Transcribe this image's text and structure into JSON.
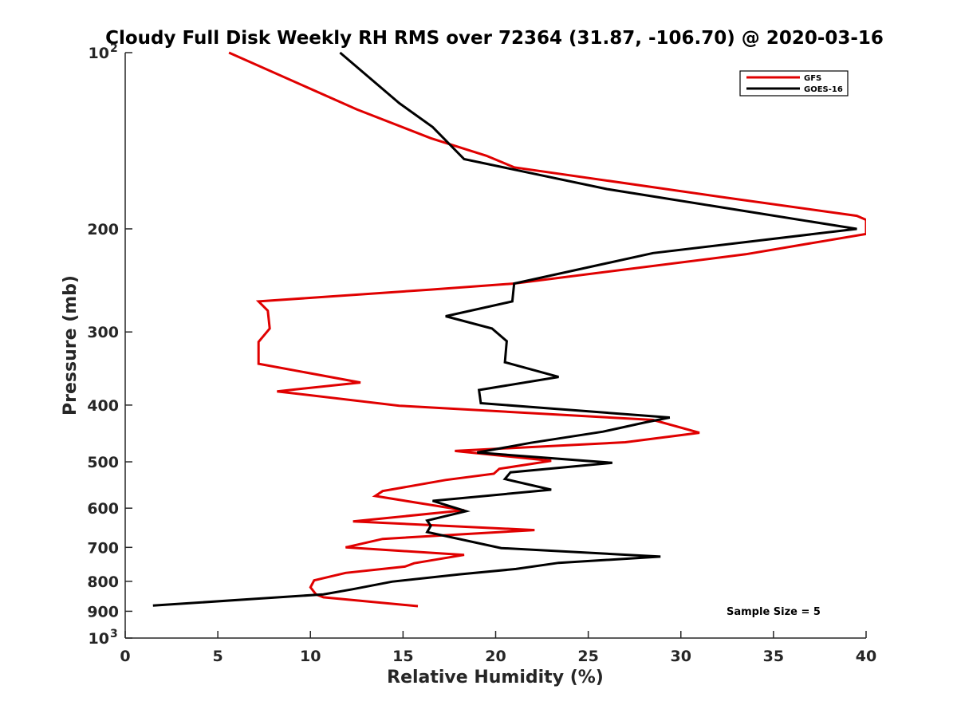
{
  "chart_data": {
    "type": "line",
    "title": "Cloudy Full Disk Weekly RH RMS over 72364 (31.87, -106.70) @ 2020-03-16",
    "xlabel": "Relative Humidity (%)",
    "ylabel": "Pressure (mb)",
    "xlim": [
      0,
      40
    ],
    "ylim": [
      100,
      1000
    ],
    "y_scale": "log",
    "y_reversed": true,
    "grid": false,
    "legend_placement": "top-right",
    "x_ticks": [
      "0",
      "5",
      "10",
      "15",
      "20",
      "25",
      "30",
      "35",
      "40"
    ],
    "x_tick_values": [
      0,
      5,
      10,
      15,
      20,
      25,
      30,
      35,
      40
    ],
    "y_ticks": [
      {
        "value": 100,
        "label": "10",
        "sup": "2"
      },
      {
        "value": 200,
        "label": "200",
        "sup": ""
      },
      {
        "value": 300,
        "label": "300",
        "sup": ""
      },
      {
        "value": 400,
        "label": "400",
        "sup": ""
      },
      {
        "value": 500,
        "label": "500",
        "sup": ""
      },
      {
        "value": 600,
        "label": "600",
        "sup": ""
      },
      {
        "value": 700,
        "label": "700",
        "sup": ""
      },
      {
        "value": 800,
        "label": "800",
        "sup": ""
      },
      {
        "value": 900,
        "label": "900",
        "sup": ""
      },
      {
        "value": 1000,
        "label": "10",
        "sup": "3"
      }
    ],
    "annotation": "Sample Size = 5",
    "series": [
      {
        "name": "GFS",
        "color": "#e00000",
        "points": [
          [
            5.6,
            100
          ],
          [
            12.5,
            125
          ],
          [
            16.5,
            140
          ],
          [
            19.5,
            150
          ],
          [
            21,
            157
          ],
          [
            32.5,
            177
          ],
          [
            39.5,
            190
          ],
          [
            40,
            193
          ],
          [
            40,
            204
          ],
          [
            33.5,
            221
          ],
          [
            21,
            248
          ],
          [
            16.5,
            254
          ],
          [
            7.2,
            266
          ],
          [
            7.7,
            276
          ],
          [
            7.8,
            296
          ],
          [
            7.2,
            312
          ],
          [
            7.2,
            340
          ],
          [
            12.7,
            366
          ],
          [
            8.2,
            379
          ],
          [
            14.8,
            401
          ],
          [
            28.5,
            424
          ],
          [
            31,
            446
          ],
          [
            27,
            463
          ],
          [
            17.8,
            479
          ],
          [
            23,
            498
          ],
          [
            20.2,
            514
          ],
          [
            19.9,
            524
          ],
          [
            17.3,
            537
          ],
          [
            13.9,
            561
          ],
          [
            13.5,
            572
          ],
          [
            18.3,
            605
          ],
          [
            12.3,
            632
          ],
          [
            22.1,
            654
          ],
          [
            13.9,
            677
          ],
          [
            11.9,
            700
          ],
          [
            18.3,
            721
          ],
          [
            15.6,
            745
          ],
          [
            15.1,
            755
          ],
          [
            11.9,
            774
          ],
          [
            10.2,
            797
          ],
          [
            10,
            819
          ],
          [
            10.3,
            842
          ],
          [
            10.7,
            852
          ],
          [
            15.8,
            882
          ]
        ]
      },
      {
        "name": "GOES-16",
        "color": "#000000",
        "points": [
          [
            11.6,
            100
          ],
          [
            14.8,
            122
          ],
          [
            16.6,
            134
          ],
          [
            18.3,
            152
          ],
          [
            26,
            171
          ],
          [
            39.5,
            200
          ],
          [
            28.5,
            220
          ],
          [
            21,
            248
          ],
          [
            20.9,
            266
          ],
          [
            17.3,
            282
          ],
          [
            19.8,
            296
          ],
          [
            20.6,
            311
          ],
          [
            20.5,
            338
          ],
          [
            23.4,
            358
          ],
          [
            19.1,
            377
          ],
          [
            19.2,
            397
          ],
          [
            29.4,
            420
          ],
          [
            28.1,
            428
          ],
          [
            25.8,
            444
          ],
          [
            21.9,
            464
          ],
          [
            19,
            482
          ],
          [
            26.3,
            502
          ],
          [
            20.8,
            521
          ],
          [
            20.5,
            535
          ],
          [
            23,
            558
          ],
          [
            16.6,
            583
          ],
          [
            18.4,
            607
          ],
          [
            16.3,
            630
          ],
          [
            16.5,
            643
          ],
          [
            16.3,
            659
          ],
          [
            20.3,
            702
          ],
          [
            28.9,
            726
          ],
          [
            23.4,
            744
          ],
          [
            21.1,
            762
          ],
          [
            18.1,
            778
          ],
          [
            14.4,
            801
          ],
          [
            12.3,
            825
          ],
          [
            10.7,
            842
          ],
          [
            7.3,
            856
          ],
          [
            1.5,
            880
          ]
        ]
      }
    ]
  }
}
